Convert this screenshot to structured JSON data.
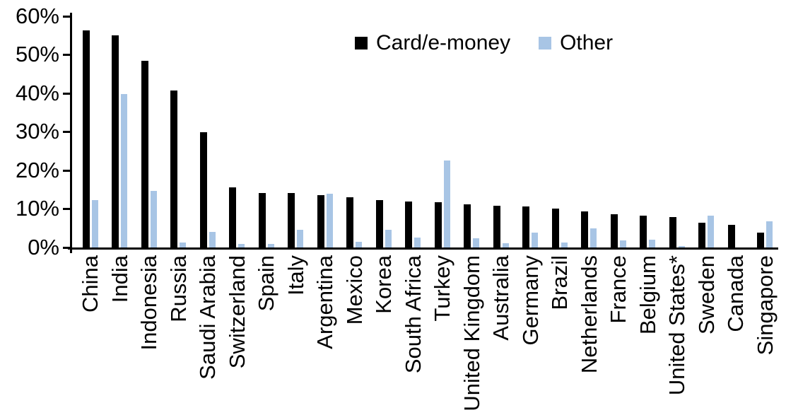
{
  "chart_data": {
    "type": "bar",
    "title": "",
    "xlabel": "",
    "ylabel": "",
    "ylim": [
      0,
      60
    ],
    "ytick_labels": [
      "0%",
      "10%",
      "20%",
      "30%",
      "40%",
      "50%",
      "60%"
    ],
    "grid": false,
    "legend_position": "top-center",
    "categories": [
      "China",
      "India",
      "Indonesia",
      "Russia",
      "Saudi Arabia",
      "Switzerland",
      "Spain",
      "Italy",
      "Argentina",
      "Mexico",
      "Korea",
      "South Africa",
      "Turkey",
      "United Kingdom",
      "Australia",
      "Germany",
      "Brazil",
      "Netherlands",
      "France",
      "Belgium",
      "United States*",
      "Sweden",
      "Canada",
      "Singapore"
    ],
    "series": [
      {
        "name": "Card/e-money",
        "color": "#000000",
        "values": [
          56.3,
          55.0,
          48.4,
          40.7,
          29.9,
          15.6,
          14.2,
          14.2,
          13.5,
          13.1,
          12.3,
          11.9,
          11.7,
          11.1,
          10.8,
          10.6,
          10.0,
          9.3,
          8.7,
          8.3,
          7.9,
          6.5,
          5.9,
          3.9
        ]
      },
      {
        "name": "Other",
        "color": "#A8C5E5",
        "values": [
          12.3,
          39.8,
          14.6,
          1.2,
          4.0,
          0.9,
          1.0,
          4.6,
          13.9,
          1.4,
          4.6,
          2.5,
          22.6,
          2.4,
          1.1,
          3.9,
          1.2,
          5.0,
          1.8,
          2.1,
          0.3,
          8.2,
          0,
          6.7
        ]
      }
    ]
  }
}
